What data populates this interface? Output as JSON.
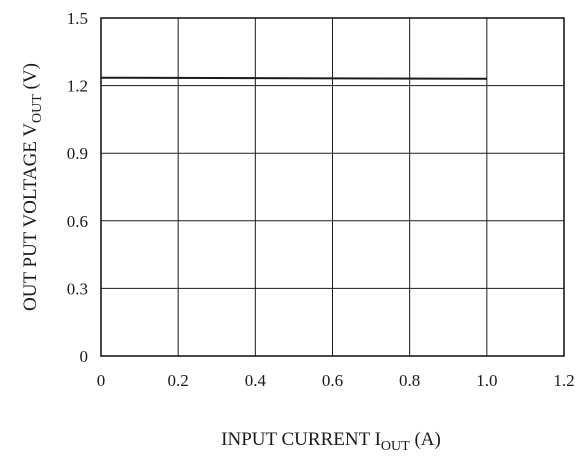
{
  "chart_data": {
    "type": "line",
    "xlabel": {
      "main": "INPUT CURRENT  I",
      "sub": "OUT",
      "unit": " (A)"
    },
    "ylabel": {
      "main": "OUT PUT VOLTAGE   V",
      "sub": "OUT",
      "unit": " (V)"
    },
    "xlim": [
      0,
      1.2
    ],
    "ylim": [
      0,
      1.5
    ],
    "x_ticks": [
      "0",
      "0.2",
      "0.4",
      "0.6",
      "0.8",
      "1.0",
      "1.2"
    ],
    "y_ticks": [
      "0",
      "0.3",
      "0.6",
      "0.9",
      "1.2",
      "1.5"
    ],
    "grid": true,
    "series": [
      {
        "x": [
          0,
          1.0
        ],
        "y": [
          1.235,
          1.23
        ],
        "color": "#1a1a1a"
      }
    ]
  }
}
